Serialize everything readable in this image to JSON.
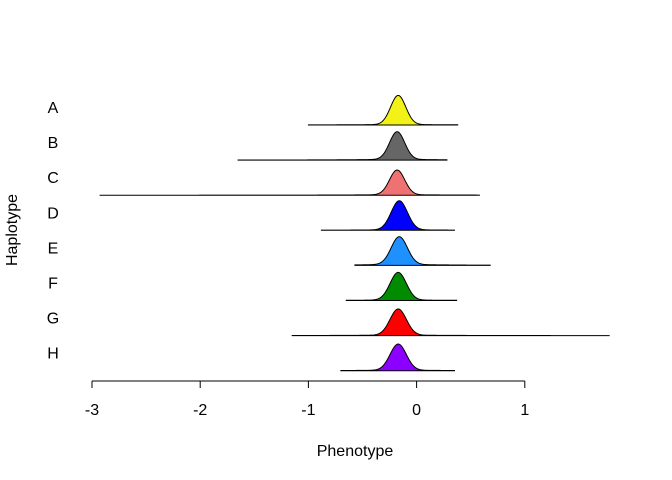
{
  "chart_data": {
    "type": "ridgeline-density",
    "xlabel": "Phenotype",
    "ylabel": "Haplotype",
    "xlim": [
      -3,
      1.8
    ],
    "xticks": [
      -3,
      -2,
      -1,
      0,
      1
    ],
    "tick_labels": [
      "-3",
      "-2",
      "-1",
      "0",
      "1"
    ],
    "grid": false,
    "legend": "none",
    "series": [
      {
        "name": "A",
        "color": "#f2f218",
        "min": -1.0,
        "max": 0.38,
        "mode": -0.17,
        "sd": 0.07,
        "peak": 1.0,
        "tail": 0.02
      },
      {
        "name": "B",
        "color": "#666666",
        "min": -1.65,
        "max": 0.28,
        "mode": -0.18,
        "sd": 0.07,
        "peak": 0.95,
        "tail": 0.03
      },
      {
        "name": "C",
        "color": "#ef7272",
        "min": -2.93,
        "max": 0.58,
        "mode": -0.18,
        "sd": 0.07,
        "peak": 0.85,
        "tail": 0.02
      },
      {
        "name": "D",
        "color": "#0000ff",
        "min": -0.88,
        "max": 0.35,
        "mode": -0.16,
        "sd": 0.075,
        "peak": 1.0,
        "tail": 0.02
      },
      {
        "name": "E",
        "color": "#1e90ff",
        "min": -0.57,
        "max": 0.68,
        "mode": -0.16,
        "sd": 0.075,
        "peak": 0.95,
        "tail": 0.04
      },
      {
        "name": "F",
        "color": "#008b00",
        "min": -0.65,
        "max": 0.37,
        "mode": -0.17,
        "sd": 0.075,
        "peak": 0.95,
        "tail": 0.02
      },
      {
        "name": "G",
        "color": "#ff0000",
        "min": -1.15,
        "max": 1.78,
        "mode": -0.17,
        "sd": 0.075,
        "peak": 0.9,
        "tail": 0.02
      },
      {
        "name": "H",
        "color": "#8b00ff",
        "min": -0.7,
        "max": 0.35,
        "mode": -0.17,
        "sd": 0.075,
        "peak": 0.9,
        "tail": 0.02
      }
    ]
  }
}
